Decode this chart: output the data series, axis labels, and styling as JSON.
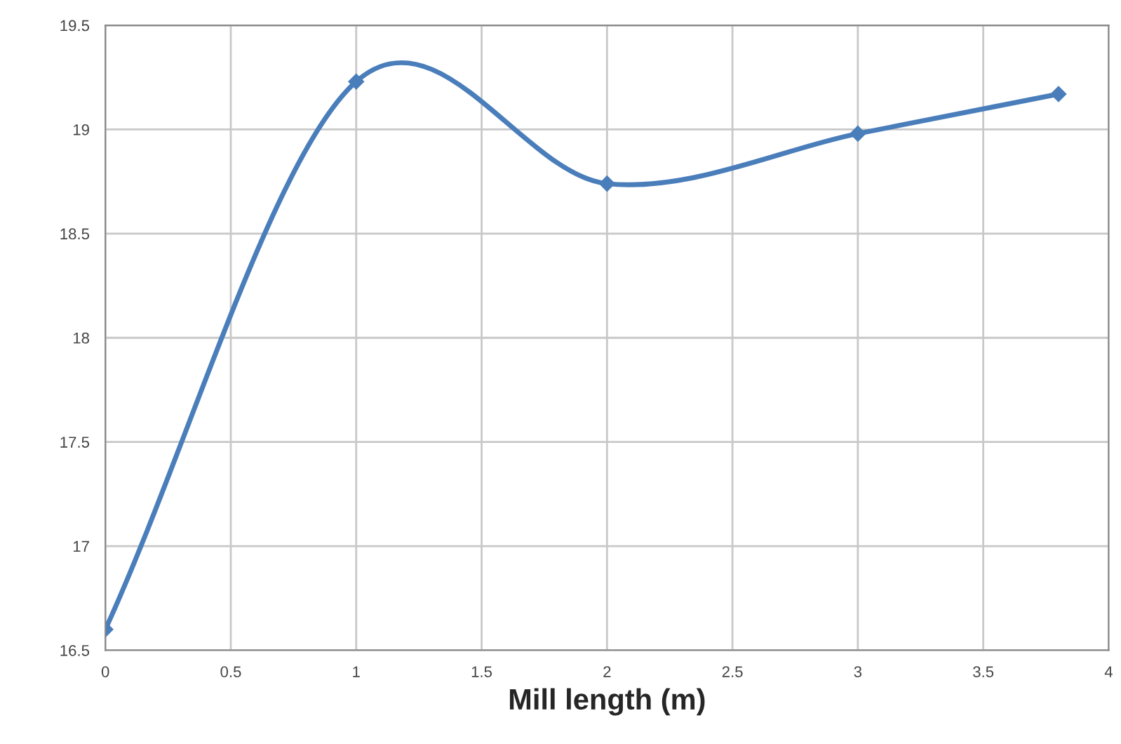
{
  "chart_data": {
    "type": "line",
    "xlabel": "Mill length (m)",
    "x": [
      0,
      1,
      2,
      3,
      3.8
    ],
    "series": [
      {
        "color": "#4a7ebb",
        "values": [
          16.6,
          19.23,
          18.74,
          18.98,
          19.17
        ]
      }
    ],
    "xlim": [
      0,
      4
    ],
    "xticks": [
      0,
      0.5,
      1,
      1.5,
      2,
      2.5,
      3,
      3.5,
      4
    ],
    "ylim": [
      16.5,
      19.5
    ],
    "yticks": [
      16.5,
      17,
      17.5,
      18,
      18.5,
      19,
      19.5
    ],
    "grid": true,
    "marker": "diamond",
    "line_style": "solid"
  }
}
